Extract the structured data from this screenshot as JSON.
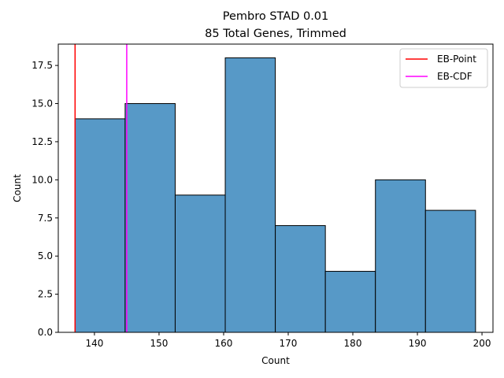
{
  "chart_data": {
    "type": "bar",
    "title": "Pembro STAD 0.01",
    "subtitle": "85 Total Genes, Trimmed",
    "xlabel": "Count",
    "ylabel": "Count",
    "xlim": [
      134.4,
      201.7
    ],
    "ylim": [
      0,
      18.9
    ],
    "xticks": [
      140,
      150,
      160,
      170,
      180,
      190,
      200
    ],
    "yticks": [
      0.0,
      2.5,
      5.0,
      7.5,
      10.0,
      12.5,
      15.0,
      17.5
    ],
    "ytick_labels": [
      "0.0",
      "2.5",
      "5.0",
      "7.5",
      "10.0",
      "12.5",
      "15.0",
      "17.5"
    ],
    "bins": [
      {
        "start": 137.0,
        "end": 144.75,
        "count": 14
      },
      {
        "start": 144.75,
        "end": 152.5,
        "count": 15
      },
      {
        "start": 152.5,
        "end": 160.25,
        "count": 9
      },
      {
        "start": 160.25,
        "end": 168.0,
        "count": 18
      },
      {
        "start": 168.0,
        "end": 175.75,
        "count": 7
      },
      {
        "start": 175.75,
        "end": 183.5,
        "count": 4
      },
      {
        "start": 183.5,
        "end": 191.25,
        "count": 10
      },
      {
        "start": 191.25,
        "end": 199.0,
        "count": 8
      }
    ],
    "bar_color": "#5799c7",
    "vlines": [
      {
        "name": "EB-Point",
        "x": 137.0,
        "color": "#ff0000"
      },
      {
        "name": "EB-CDF",
        "x": 145.0,
        "color": "#ff00ff"
      }
    ],
    "legend_position": "upper right",
    "grid": false
  }
}
